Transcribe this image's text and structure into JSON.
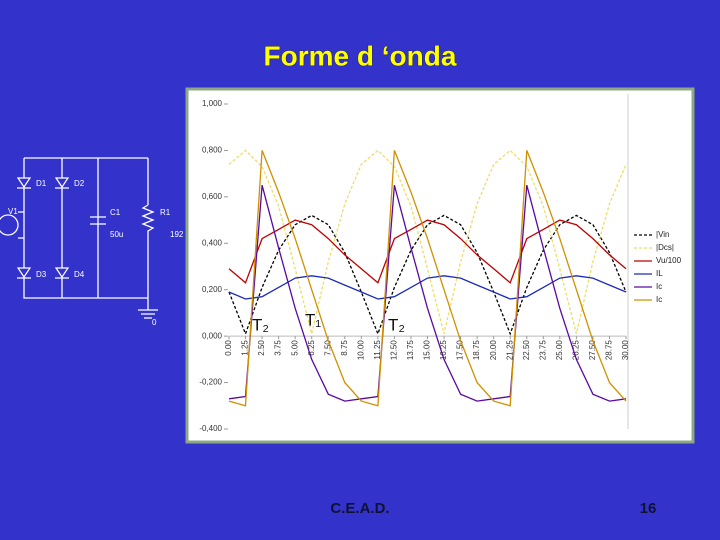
{
  "slide": {
    "title": "Forme d ‘onda",
    "footer": "C.E.A.D.",
    "page": "16"
  },
  "circuit": {
    "labels": [
      "D1",
      "D2",
      "D3",
      "D4",
      "V1",
      "C1",
      "50u",
      "R1",
      "192",
      "0"
    ]
  },
  "chart_data": {
    "type": "line",
    "annotations": [
      "T₂",
      "T₁",
      "T₂"
    ],
    "x": [
      0,
      1.25,
      2.5,
      3.75,
      5,
      6.25,
      7.5,
      8.75,
      10,
      11.25,
      12.5,
      13.75,
      15,
      16.25,
      17.5,
      18.75,
      20,
      21.25,
      22.5,
      23.75,
      25,
      26.25,
      27.5,
      28.75,
      30
    ],
    "xlim": [
      0,
      30
    ],
    "xticks": [
      {
        "value": 0,
        "label": "0.00"
      },
      {
        "value": 1.25,
        "label": "1.25"
      },
      {
        "value": 2.5,
        "label": "2.50"
      },
      {
        "value": 3.75,
        "label": "3.75"
      },
      {
        "value": 5,
        "label": "5.00"
      },
      {
        "value": 6.25,
        "label": "6.25"
      },
      {
        "value": 7.5,
        "label": "7.50"
      },
      {
        "value": 8.75,
        "label": "8.75"
      },
      {
        "value": 10,
        "label": "10.00"
      },
      {
        "value": 11.25,
        "label": "11.25"
      },
      {
        "value": 12.5,
        "label": "12.50"
      },
      {
        "value": 13.75,
        "label": "13.75"
      },
      {
        "value": 15,
        "label": "15.00"
      },
      {
        "value": 16.25,
        "label": "16.25"
      },
      {
        "value": 17.5,
        "label": "17.50"
      },
      {
        "value": 18.75,
        "label": "18.75"
      },
      {
        "value": 20,
        "label": "20.00"
      },
      {
        "value": 21.25,
        "label": "21.25"
      },
      {
        "value": 22.5,
        "label": "22.50"
      },
      {
        "value": 23.75,
        "label": "23.75"
      },
      {
        "value": 25,
        "label": "25.00"
      },
      {
        "value": 26.25,
        "label": "26.25"
      },
      {
        "value": 27.5,
        "label": "27.50"
      },
      {
        "value": 28.75,
        "label": "28.75"
      },
      {
        "value": 30,
        "label": "30.00"
      }
    ],
    "ylim": [
      -0.4,
      1
    ],
    "yticks": [
      {
        "value": 1,
        "label": "1,000"
      },
      {
        "value": 0.8,
        "label": "0,800"
      },
      {
        "value": 0.6,
        "label": "0,600"
      },
      {
        "value": 0.4,
        "label": "0,400"
      },
      {
        "value": 0.2,
        "label": "0,200"
      },
      {
        "value": 0,
        "label": "0,000"
      },
      {
        "value": -0.2,
        "label": "-0,200"
      },
      {
        "value": -0.4,
        "label": "-0,400"
      }
    ],
    "series": [
      {
        "name": "|Vin",
        "color": "#000000",
        "dashed": true,
        "values": [
          0.19,
          0.01,
          0.21,
          0.37,
          0.48,
          0.52,
          0.48,
          0.36,
          0.19,
          0.01,
          0.21,
          0.37,
          0.48,
          0.52,
          0.48,
          0.36,
          0.19,
          0.01,
          0.21,
          0.37,
          0.48,
          0.52,
          0.48,
          0.36,
          0.19
        ]
      },
      {
        "name": "|Dcs|",
        "color": "#f0dc64",
        "dashed": true,
        "values": [
          0.74,
          0.8,
          0.73,
          0.56,
          0.29,
          0.01,
          0.32,
          0.57,
          0.74,
          0.8,
          0.73,
          0.56,
          0.29,
          0.01,
          0.32,
          0.57,
          0.74,
          0.8,
          0.73,
          0.56,
          0.29,
          0.01,
          0.32,
          0.57,
          0.74
        ]
      },
      {
        "name": "Vu/100",
        "color": "#c00000",
        "dashed": false,
        "values": [
          0.29,
          0.23,
          0.42,
          0.46,
          0.5,
          0.48,
          0.42,
          0.35,
          0.29,
          0.23,
          0.42,
          0.46,
          0.5,
          0.48,
          0.42,
          0.35,
          0.29,
          0.23,
          0.42,
          0.46,
          0.5,
          0.48,
          0.42,
          0.35,
          0.29
        ]
      },
      {
        "name": "IL",
        "color": "#1c2cb8",
        "dashed": false,
        "values": [
          0.19,
          0.16,
          0.17,
          0.21,
          0.25,
          0.26,
          0.25,
          0.22,
          0.19,
          0.16,
          0.17,
          0.21,
          0.25,
          0.26,
          0.25,
          0.22,
          0.19,
          0.16,
          0.17,
          0.21,
          0.25,
          0.26,
          0.25,
          0.22,
          0.19
        ]
      },
      {
        "name": "Ic",
        "color": "#5a0aa0",
        "dashed": false,
        "values": [
          -0.27,
          -0.26,
          0.65,
          0.38,
          0.12,
          -0.1,
          -0.25,
          -0.28,
          -0.27,
          -0.26,
          0.65,
          0.38,
          0.12,
          -0.1,
          -0.25,
          -0.28,
          -0.27,
          -0.26,
          0.65,
          0.38,
          0.12,
          -0.1,
          -0.25,
          -0.28,
          -0.27
        ]
      },
      {
        "name": "Ic",
        "color": "#d09000",
        "dashed": false,
        "values": [
          -0.28,
          -0.3,
          0.8,
          0.62,
          0.42,
          0.2,
          -0.02,
          -0.2,
          -0.28,
          -0.3,
          0.8,
          0.62,
          0.42,
          0.2,
          -0.02,
          -0.2,
          -0.28,
          -0.3,
          0.8,
          0.62,
          0.42,
          0.2,
          -0.02,
          -0.2,
          -0.28
        ]
      }
    ]
  }
}
